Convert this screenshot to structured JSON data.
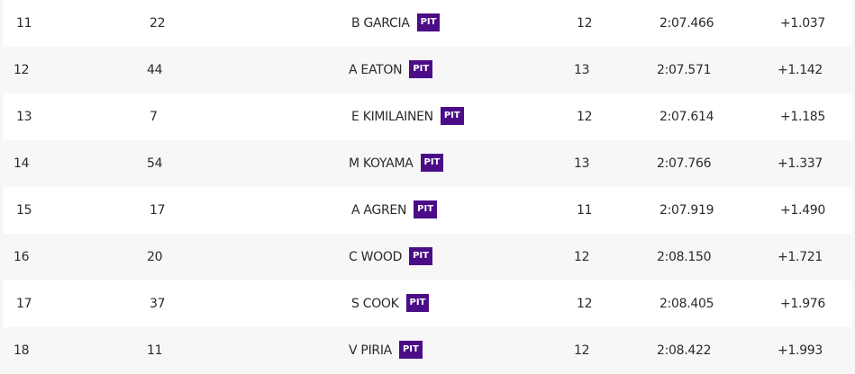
{
  "table": {
    "rows": [
      {
        "position": "11",
        "number": "22",
        "driver": "B GARCIA",
        "status": "PIT",
        "laps": "12",
        "time": "2:07.466",
        "gap": "+1.037"
      },
      {
        "position": "12",
        "number": "44",
        "driver": "A EATON",
        "status": "PIT",
        "laps": "13",
        "time": "2:07.571",
        "gap": "+1.142"
      },
      {
        "position": "13",
        "number": "7",
        "driver": "E KIMILAINEN",
        "status": "PIT",
        "laps": "12",
        "time": "2:07.614",
        "gap": "+1.185"
      },
      {
        "position": "14",
        "number": "54",
        "driver": "M KOYAMA",
        "status": "PIT",
        "laps": "13",
        "time": "2:07.766",
        "gap": "+1.337"
      },
      {
        "position": "15",
        "number": "17",
        "driver": "A AGREN",
        "status": "PIT",
        "laps": "11",
        "time": "2:07.919",
        "gap": "+1.490"
      },
      {
        "position": "16",
        "number": "20",
        "driver": "C WOOD",
        "status": "PIT",
        "laps": "12",
        "time": "2:08.150",
        "gap": "+1.721"
      },
      {
        "position": "17",
        "number": "37",
        "driver": "S COOK",
        "status": "PIT",
        "laps": "12",
        "time": "2:08.405",
        "gap": "+1.976"
      },
      {
        "position": "18",
        "number": "11",
        "driver": "V PIRIA",
        "status": "PIT",
        "laps": "12",
        "time": "2:08.422",
        "gap": "+1.993"
      }
    ]
  }
}
